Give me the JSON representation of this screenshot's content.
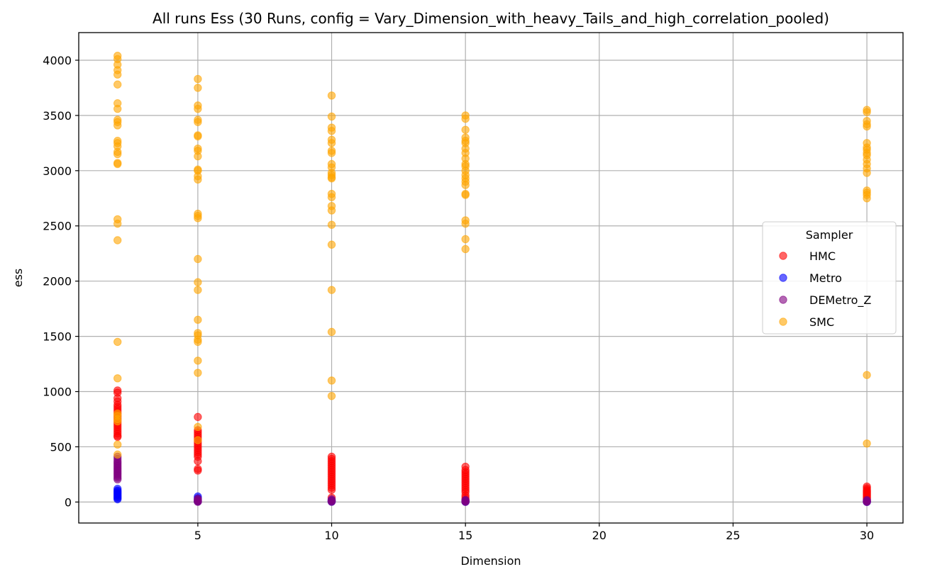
{
  "chart_data": {
    "type": "scatter",
    "title": "All runs Ess (30 Runs, config = Vary_Dimension_with_heavy_Tails_and_high_correlation_pooled)",
    "xlabel": "Dimension",
    "ylabel": "ess",
    "xlim": [
      0.55,
      31.35
    ],
    "ylim": [
      -190,
      4250
    ],
    "xticks": [
      5,
      10,
      15,
      20,
      25,
      30
    ],
    "yticks": [
      0,
      500,
      1000,
      1500,
      2000,
      2500,
      3000,
      3500,
      4000
    ],
    "grid": true,
    "legend": {
      "title": "Sampler",
      "placement": "center-right"
    },
    "series": [
      {
        "name": "HMC",
        "color": "#ff0000",
        "points": [
          [
            2,
            1010
          ],
          [
            2,
            990
          ],
          [
            2,
            940
          ],
          [
            2,
            910
          ],
          [
            2,
            880
          ],
          [
            2,
            860
          ],
          [
            2,
            840
          ],
          [
            2,
            820
          ],
          [
            2,
            800
          ],
          [
            2,
            780
          ],
          [
            2,
            760
          ],
          [
            2,
            740
          ],
          [
            2,
            720
          ],
          [
            2,
            700
          ],
          [
            2,
            680
          ],
          [
            2,
            660
          ],
          [
            2,
            640
          ],
          [
            2,
            620
          ],
          [
            2,
            600
          ],
          [
            2,
            590
          ],
          [
            5,
            770
          ],
          [
            5,
            650
          ],
          [
            5,
            630
          ],
          [
            5,
            610
          ],
          [
            5,
            590
          ],
          [
            5,
            570
          ],
          [
            5,
            550
          ],
          [
            5,
            530
          ],
          [
            5,
            510
          ],
          [
            5,
            490
          ],
          [
            5,
            470
          ],
          [
            5,
            450
          ],
          [
            5,
            430
          ],
          [
            5,
            410
          ],
          [
            5,
            370
          ],
          [
            5,
            300
          ],
          [
            5,
            285
          ],
          [
            10,
            410
          ],
          [
            10,
            390
          ],
          [
            10,
            370
          ],
          [
            10,
            350
          ],
          [
            10,
            330
          ],
          [
            10,
            310
          ],
          [
            10,
            290
          ],
          [
            10,
            270
          ],
          [
            10,
            250
          ],
          [
            10,
            230
          ],
          [
            10,
            210
          ],
          [
            10,
            190
          ],
          [
            10,
            170
          ],
          [
            10,
            150
          ],
          [
            10,
            130
          ],
          [
            10,
            110
          ],
          [
            10,
            40
          ],
          [
            15,
            320
          ],
          [
            15,
            290
          ],
          [
            15,
            270
          ],
          [
            15,
            250
          ],
          [
            15,
            230
          ],
          [
            15,
            210
          ],
          [
            15,
            190
          ],
          [
            15,
            170
          ],
          [
            15,
            150
          ],
          [
            15,
            130
          ],
          [
            15,
            110
          ],
          [
            15,
            90
          ],
          [
            15,
            60
          ],
          [
            15,
            40
          ],
          [
            15,
            20
          ],
          [
            30,
            140
          ],
          [
            30,
            125
          ],
          [
            30,
            110
          ],
          [
            30,
            100
          ],
          [
            30,
            90
          ],
          [
            30,
            80
          ],
          [
            30,
            70
          ],
          [
            30,
            60
          ],
          [
            30,
            50
          ],
          [
            30,
            40
          ],
          [
            30,
            30
          ],
          [
            30,
            20
          ]
        ]
      },
      {
        "name": "Metro",
        "color": "#0000ff",
        "points": [
          [
            2,
            120
          ],
          [
            2,
            105
          ],
          [
            2,
            95
          ],
          [
            2,
            85
          ],
          [
            2,
            75
          ],
          [
            2,
            65
          ],
          [
            2,
            55
          ],
          [
            2,
            45
          ],
          [
            2,
            35
          ],
          [
            2,
            25
          ],
          [
            5,
            50
          ],
          [
            5,
            35
          ],
          [
            5,
            20
          ],
          [
            5,
            10
          ],
          [
            5,
            5
          ],
          [
            10,
            15
          ],
          [
            10,
            8
          ],
          [
            10,
            3
          ],
          [
            15,
            10
          ],
          [
            15,
            5
          ],
          [
            15,
            2
          ],
          [
            30,
            8
          ],
          [
            30,
            4
          ],
          [
            30,
            1
          ]
        ]
      },
      {
        "name": "DEMetro_Z",
        "color": "#800080",
        "points": [
          [
            2,
            410
          ],
          [
            2,
            390
          ],
          [
            2,
            370
          ],
          [
            2,
            355
          ],
          [
            2,
            340
          ],
          [
            2,
            325
          ],
          [
            2,
            310
          ],
          [
            2,
            295
          ],
          [
            2,
            280
          ],
          [
            2,
            265
          ],
          [
            2,
            250
          ],
          [
            2,
            235
          ],
          [
            2,
            220
          ],
          [
            2,
            205
          ],
          [
            5,
            30
          ],
          [
            5,
            20
          ],
          [
            5,
            12
          ],
          [
            5,
            6
          ],
          [
            5,
            2
          ],
          [
            10,
            25
          ],
          [
            10,
            15
          ],
          [
            10,
            8
          ],
          [
            10,
            3
          ],
          [
            15,
            20
          ],
          [
            15,
            12
          ],
          [
            15,
            6
          ],
          [
            15,
            2
          ],
          [
            30,
            18
          ],
          [
            30,
            10
          ],
          [
            30,
            5
          ],
          [
            30,
            1
          ]
        ]
      },
      {
        "name": "SMC",
        "color": "#ffa500",
        "points": [
          [
            2,
            4040
          ],
          [
            2,
            4010
          ],
          [
            2,
            3960
          ],
          [
            2,
            3910
          ],
          [
            2,
            3870
          ],
          [
            2,
            3780
          ],
          [
            2,
            3610
          ],
          [
            2,
            3560
          ],
          [
            2,
            3460
          ],
          [
            2,
            3440
          ],
          [
            2,
            3410
          ],
          [
            2,
            3270
          ],
          [
            2,
            3250
          ],
          [
            2,
            3220
          ],
          [
            2,
            3170
          ],
          [
            2,
            3150
          ],
          [
            2,
            3070
          ],
          [
            2,
            3060
          ],
          [
            2,
            2560
          ],
          [
            2,
            2520
          ],
          [
            2,
            2370
          ],
          [
            2,
            1450
          ],
          [
            2,
            1120
          ],
          [
            2,
            800
          ],
          [
            2,
            780
          ],
          [
            2,
            750
          ],
          [
            2,
            730
          ],
          [
            2,
            520
          ],
          [
            2,
            430
          ],
          [
            5,
            3830
          ],
          [
            5,
            3750
          ],
          [
            5,
            3590
          ],
          [
            5,
            3560
          ],
          [
            5,
            3460
          ],
          [
            5,
            3440
          ],
          [
            5,
            3320
          ],
          [
            5,
            3310
          ],
          [
            5,
            3200
          ],
          [
            5,
            3180
          ],
          [
            5,
            3130
          ],
          [
            5,
            3010
          ],
          [
            5,
            3000
          ],
          [
            5,
            2950
          ],
          [
            5,
            2920
          ],
          [
            5,
            2610
          ],
          [
            5,
            2590
          ],
          [
            5,
            2570
          ],
          [
            5,
            2200
          ],
          [
            5,
            1990
          ],
          [
            5,
            1920
          ],
          [
            5,
            1650
          ],
          [
            5,
            1530
          ],
          [
            5,
            1510
          ],
          [
            5,
            1470
          ],
          [
            5,
            1450
          ],
          [
            5,
            1280
          ],
          [
            5,
            1170
          ],
          [
            5,
            680
          ],
          [
            5,
            560
          ],
          [
            10,
            3680
          ],
          [
            10,
            3490
          ],
          [
            10,
            3390
          ],
          [
            10,
            3360
          ],
          [
            10,
            3280
          ],
          [
            10,
            3250
          ],
          [
            10,
            3180
          ],
          [
            10,
            3160
          ],
          [
            10,
            3060
          ],
          [
            10,
            3030
          ],
          [
            10,
            2980
          ],
          [
            10,
            2960
          ],
          [
            10,
            2940
          ],
          [
            10,
            2930
          ],
          [
            10,
            2790
          ],
          [
            10,
            2760
          ],
          [
            10,
            2680
          ],
          [
            10,
            2640
          ],
          [
            10,
            2510
          ],
          [
            10,
            2330
          ],
          [
            10,
            1920
          ],
          [
            10,
            1540
          ],
          [
            10,
            1100
          ],
          [
            10,
            960
          ],
          [
            15,
            3500
          ],
          [
            15,
            3470
          ],
          [
            15,
            3370
          ],
          [
            15,
            3300
          ],
          [
            15,
            3270
          ],
          [
            15,
            3250
          ],
          [
            15,
            3200
          ],
          [
            15,
            3160
          ],
          [
            15,
            3110
          ],
          [
            15,
            3060
          ],
          [
            15,
            3040
          ],
          [
            15,
            3000
          ],
          [
            15,
            2960
          ],
          [
            15,
            2930
          ],
          [
            15,
            2900
          ],
          [
            15,
            2870
          ],
          [
            15,
            2790
          ],
          [
            15,
            2780
          ],
          [
            15,
            2550
          ],
          [
            15,
            2520
          ],
          [
            15,
            2380
          ],
          [
            15,
            2290
          ],
          [
            30,
            3550
          ],
          [
            30,
            3530
          ],
          [
            30,
            3450
          ],
          [
            30,
            3420
          ],
          [
            30,
            3400
          ],
          [
            30,
            3250
          ],
          [
            30,
            3210
          ],
          [
            30,
            3190
          ],
          [
            30,
            3160
          ],
          [
            30,
            3140
          ],
          [
            30,
            3100
          ],
          [
            30,
            3060
          ],
          [
            30,
            3020
          ],
          [
            30,
            2980
          ],
          [
            30,
            2820
          ],
          [
            30,
            2800
          ],
          [
            30,
            2780
          ],
          [
            30,
            2750
          ],
          [
            30,
            1150
          ],
          [
            30,
            530
          ]
        ]
      }
    ]
  }
}
